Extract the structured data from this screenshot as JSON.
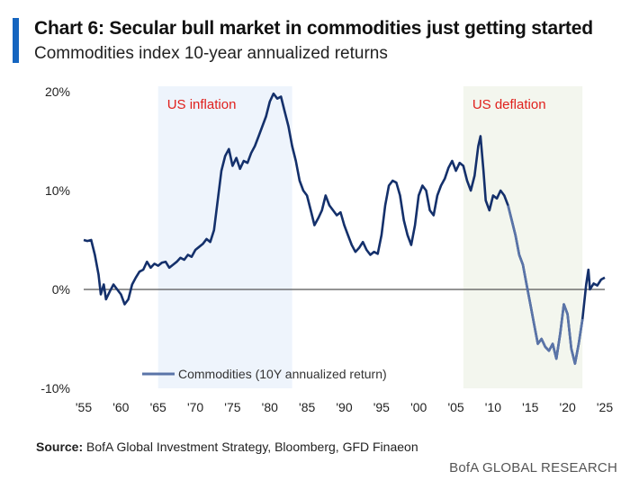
{
  "header": {
    "title": "Chart 6: Secular bull market in commodities just getting started",
    "subtitle": "Commodities index 10-year annualized returns"
  },
  "footer": {
    "source_label": "Source:",
    "source_text": "BofA Global Investment Strategy, Bloomberg, GFD Finaeon",
    "brand": "BofA GLOBAL RESEARCH"
  },
  "colors": {
    "line": "#14306b",
    "line_light": "#5a74a8",
    "inflation_band": "#eef4fc",
    "deflation_band": "#f3f6ee",
    "annotation": "#e0201c",
    "zero_line": "#555555",
    "accent": "#1565c0"
  },
  "chart_data": {
    "type": "line",
    "title": "Chart 6: Secular bull market in commodities just getting started",
    "subtitle": "Commodities index 10-year annualized returns",
    "xlabel": "",
    "ylabel": "",
    "xlim": [
      1955,
      2025
    ],
    "ylim": [
      -10,
      20
    ],
    "grid": false,
    "legend_position": "bottom-left",
    "x_tick_values": [
      1955,
      1960,
      1965,
      1970,
      1975,
      1980,
      1985,
      1990,
      1995,
      2000,
      2005,
      2010,
      2015,
      2020,
      2025
    ],
    "x_tick_labels": [
      "'55",
      "'60",
      "'65",
      "'70",
      "'75",
      "'80",
      "'85",
      "'90",
      "'95",
      "'00",
      "'05",
      "'10",
      "'15",
      "'20",
      "'25"
    ],
    "y_tick_values": [
      20,
      10,
      0,
      -10
    ],
    "y_tick_labels": [
      "20%",
      "10%",
      "0%",
      "-10%"
    ],
    "shaded_regions": [
      {
        "label": "US inflation",
        "x_start": 1965,
        "x_end": 1983
      },
      {
        "label": "US deflation",
        "x_start": 2006,
        "x_end": 2022
      }
    ],
    "series": [
      {
        "name": "Commodities (10Y annualized return)",
        "points": [
          [
            1955.0,
            5.0
          ],
          [
            1955.5,
            4.9
          ],
          [
            1956.0,
            5.0
          ],
          [
            1956.5,
            3.5
          ],
          [
            1957.0,
            1.5
          ],
          [
            1957.3,
            -0.5
          ],
          [
            1957.7,
            0.5
          ],
          [
            1958.0,
            -1.0
          ],
          [
            1958.5,
            -0.2
          ],
          [
            1959.0,
            0.5
          ],
          [
            1959.5,
            0.0
          ],
          [
            1960.0,
            -0.5
          ],
          [
            1960.5,
            -1.5
          ],
          [
            1961.0,
            -1.0
          ],
          [
            1961.5,
            0.5
          ],
          [
            1962.0,
            1.2
          ],
          [
            1962.5,
            1.8
          ],
          [
            1963.0,
            2.0
          ],
          [
            1963.5,
            2.8
          ],
          [
            1964.0,
            2.2
          ],
          [
            1964.5,
            2.6
          ],
          [
            1965.0,
            2.4
          ],
          [
            1965.5,
            2.7
          ],
          [
            1966.0,
            2.8
          ],
          [
            1966.5,
            2.2
          ],
          [
            1967.0,
            2.5
          ],
          [
            1967.5,
            2.8
          ],
          [
            1968.0,
            3.2
          ],
          [
            1968.5,
            3.0
          ],
          [
            1969.0,
            3.5
          ],
          [
            1969.5,
            3.3
          ],
          [
            1970.0,
            4.0
          ],
          [
            1970.5,
            4.3
          ],
          [
            1971.0,
            4.6
          ],
          [
            1971.5,
            5.1
          ],
          [
            1972.0,
            4.8
          ],
          [
            1972.5,
            6.0
          ],
          [
            1973.0,
            9.0
          ],
          [
            1973.5,
            12.0
          ],
          [
            1974.0,
            13.5
          ],
          [
            1974.5,
            14.2
          ],
          [
            1975.0,
            12.5
          ],
          [
            1975.5,
            13.3
          ],
          [
            1976.0,
            12.2
          ],
          [
            1976.5,
            13.0
          ],
          [
            1977.0,
            12.8
          ],
          [
            1977.5,
            13.8
          ],
          [
            1978.0,
            14.5
          ],
          [
            1978.5,
            15.5
          ],
          [
            1979.0,
            16.5
          ],
          [
            1979.5,
            17.5
          ],
          [
            1980.0,
            19.0
          ],
          [
            1980.5,
            19.8
          ],
          [
            1981.0,
            19.3
          ],
          [
            1981.5,
            19.5
          ],
          [
            1982.0,
            18.0
          ],
          [
            1982.5,
            16.5
          ],
          [
            1983.0,
            14.5
          ],
          [
            1983.5,
            13.0
          ],
          [
            1984.0,
            11.0
          ],
          [
            1984.5,
            10.0
          ],
          [
            1985.0,
            9.5
          ],
          [
            1985.5,
            8.0
          ],
          [
            1986.0,
            6.5
          ],
          [
            1986.5,
            7.2
          ],
          [
            1987.0,
            8.0
          ],
          [
            1987.5,
            9.5
          ],
          [
            1988.0,
            8.5
          ],
          [
            1988.5,
            8.0
          ],
          [
            1989.0,
            7.5
          ],
          [
            1989.5,
            7.8
          ],
          [
            1990.0,
            6.5
          ],
          [
            1990.5,
            5.5
          ],
          [
            1991.0,
            4.5
          ],
          [
            1991.5,
            3.8
          ],
          [
            1992.0,
            4.2
          ],
          [
            1992.5,
            4.8
          ],
          [
            1993.0,
            4.0
          ],
          [
            1993.5,
            3.5
          ],
          [
            1994.0,
            3.8
          ],
          [
            1994.5,
            3.6
          ],
          [
            1995.0,
            5.5
          ],
          [
            1995.5,
            8.5
          ],
          [
            1996.0,
            10.5
          ],
          [
            1996.5,
            11.0
          ],
          [
            1997.0,
            10.8
          ],
          [
            1997.5,
            9.5
          ],
          [
            1998.0,
            7.0
          ],
          [
            1998.5,
            5.5
          ],
          [
            1999.0,
            4.5
          ],
          [
            1999.5,
            6.5
          ],
          [
            2000.0,
            9.5
          ],
          [
            2000.5,
            10.5
          ],
          [
            2001.0,
            10.0
          ],
          [
            2001.5,
            8.0
          ],
          [
            2002.0,
            7.5
          ],
          [
            2002.5,
            9.5
          ],
          [
            2003.0,
            10.5
          ],
          [
            2003.5,
            11.2
          ],
          [
            2004.0,
            12.3
          ],
          [
            2004.5,
            13.0
          ],
          [
            2005.0,
            12.0
          ],
          [
            2005.5,
            12.8
          ],
          [
            2006.0,
            12.5
          ],
          [
            2006.5,
            11.0
          ],
          [
            2007.0,
            10.0
          ],
          [
            2007.5,
            11.5
          ],
          [
            2008.0,
            14.5
          ],
          [
            2008.3,
            15.5
          ],
          [
            2008.7,
            12.0
          ],
          [
            2009.0,
            9.0
          ],
          [
            2009.5,
            8.0
          ],
          [
            2010.0,
            9.5
          ],
          [
            2010.5,
            9.2
          ],
          [
            2011.0,
            10.0
          ],
          [
            2011.5,
            9.5
          ],
          [
            2012.0,
            8.5
          ],
          [
            2012.5,
            7.0
          ],
          [
            2013.0,
            5.5
          ],
          [
            2013.5,
            3.5
          ],
          [
            2014.0,
            2.5
          ],
          [
            2014.5,
            0.5
          ],
          [
            2015.0,
            -1.5
          ],
          [
            2015.5,
            -3.5
          ],
          [
            2016.0,
            -5.5
          ],
          [
            2016.5,
            -5.0
          ],
          [
            2017.0,
            -5.8
          ],
          [
            2017.5,
            -6.2
          ],
          [
            2018.0,
            -5.5
          ],
          [
            2018.5,
            -7.0
          ],
          [
            2019.0,
            -4.5
          ],
          [
            2019.5,
            -1.5
          ],
          [
            2020.0,
            -2.5
          ],
          [
            2020.5,
            -6.0
          ],
          [
            2021.0,
            -7.5
          ],
          [
            2021.5,
            -5.5
          ],
          [
            2022.0,
            -3.0
          ],
          [
            2022.5,
            0.5
          ],
          [
            2022.8,
            2.0
          ],
          [
            2023.0,
            0.0
          ],
          [
            2023.5,
            0.6
          ],
          [
            2024.0,
            0.4
          ],
          [
            2024.5,
            1.0
          ],
          [
            2025.0,
            1.2
          ]
        ]
      }
    ]
  }
}
